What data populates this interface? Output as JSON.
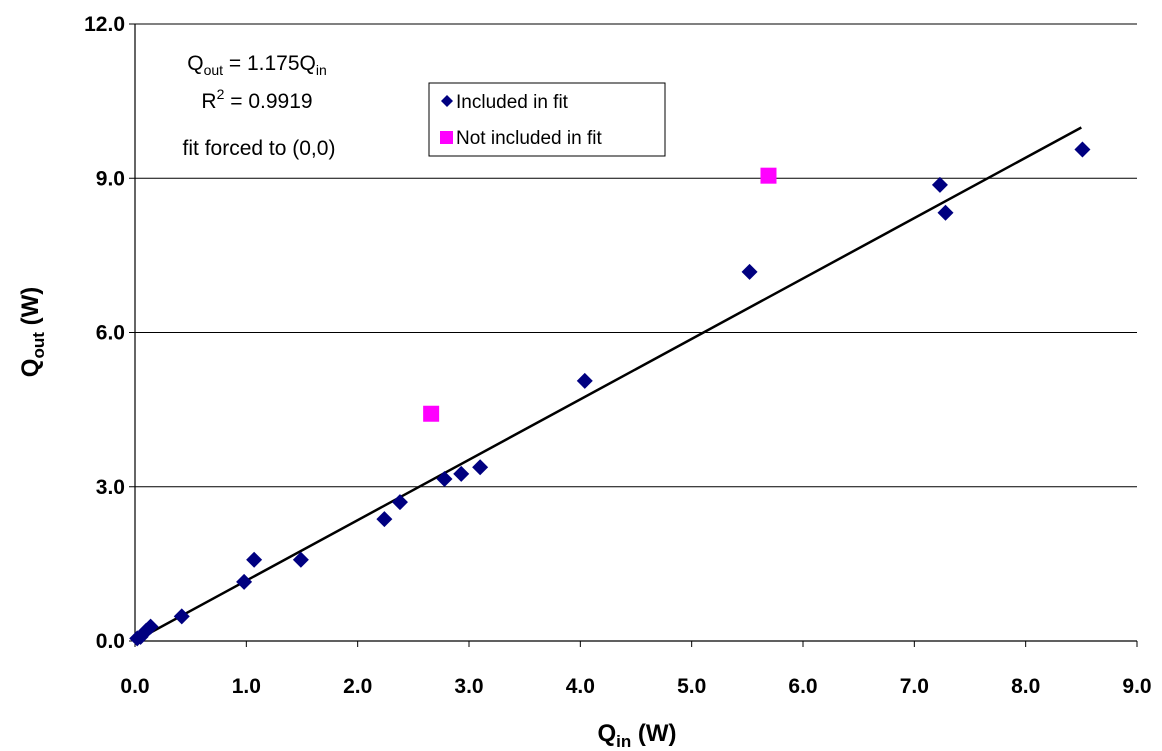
{
  "chart_data": {
    "type": "scatter",
    "xlabel": {
      "main": "Q",
      "sub": "in",
      "unit": " (W)"
    },
    "ylabel": {
      "main": "Q",
      "sub": "out",
      "unit": " (W)"
    },
    "xlim": [
      0,
      9
    ],
    "ylim": [
      0,
      12
    ],
    "x_ticks": [
      "0.0",
      "1.0",
      "2.0",
      "3.0",
      "4.0",
      "5.0",
      "6.0",
      "7.0",
      "8.0",
      "9.0"
    ],
    "y_ticks": [
      "0.0",
      "3.0",
      "6.0",
      "9.0",
      "12.0"
    ],
    "grid": "horizontal",
    "legend_position": "top-center",
    "series": [
      {
        "name": "Included in fit",
        "marker": "diamond",
        "color": "#000080",
        "points": [
          [
            0.02,
            0.05
          ],
          [
            0.05,
            0.08
          ],
          [
            0.1,
            0.2
          ],
          [
            0.14,
            0.28
          ],
          [
            0.42,
            0.48
          ],
          [
            0.98,
            1.15
          ],
          [
            1.07,
            1.58
          ],
          [
            1.49,
            1.58
          ],
          [
            2.24,
            2.37
          ],
          [
            2.38,
            2.7
          ],
          [
            2.78,
            3.15
          ],
          [
            2.93,
            3.25
          ],
          [
            3.1,
            3.38
          ],
          [
            4.04,
            5.06
          ],
          [
            5.52,
            7.18
          ],
          [
            7.23,
            8.87
          ],
          [
            7.28,
            8.33
          ],
          [
            8.51,
            9.56
          ]
        ]
      },
      {
        "name": "Not included in fit",
        "marker": "square",
        "color": "#ff00ff",
        "points": [
          [
            2.66,
            4.42
          ],
          [
            5.69,
            9.05
          ]
        ]
      }
    ],
    "fit": {
      "slope": 1.175,
      "x_range": [
        0,
        8.5
      ],
      "color": "#000000"
    },
    "annotation": {
      "equation_main": "Q",
      "equation_sub_out": "out",
      "equation_rest": " = 1.175Q",
      "equation_sub_in": "in",
      "r2_main": "R",
      "r2_sup": "2",
      "r2_rest": " = 0.9919",
      "note": "fit forced to (0,0)"
    }
  }
}
